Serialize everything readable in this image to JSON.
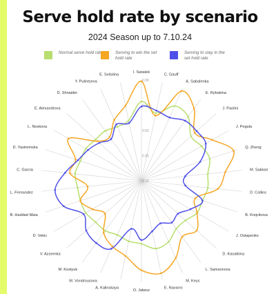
{
  "page": {
    "title": "Serve hold rate by scenario",
    "subtitle": "2024 Season up to 7.10.24"
  },
  "legend": [
    {
      "label": "Normal serve hold rate",
      "color": "#b8de6f"
    },
    {
      "label": "Serving to win the set hold rate",
      "color": "#f5a623"
    },
    {
      "label": "Serving to stay in the set hold rate",
      "color": "#4e4fe8"
    }
  ],
  "chart_data": {
    "type": "radar",
    "title": "Serve hold rate by scenario",
    "subtitle": "2024 Season up to 7.10.24",
    "rlim": [
      0.15,
      0.95
    ],
    "rticks": [
      0.15,
      0.35,
      0.55,
      0.75,
      0.95
    ],
    "categories": [
      "I. Swiatek",
      "C. Gauff",
      "A. Sabalenka",
      "E. Rybakina",
      "J. Paolini",
      "J. Pegula",
      "Q. Zheng",
      "M. Sakkari",
      "D. Collins",
      "B. Krejcikova",
      "J. Ostapenko",
      "D. Kasatkina",
      "L. Samsonova",
      "M. Keys",
      "E. Navarro",
      "O. Jabeur",
      "A. Kalinskaya",
      "M. Vondrousova",
      "M. Kostyuk",
      "V. Azarenka",
      "D. Vekic",
      "B. Haddad Maia",
      "L. Fernandez",
      "C. Garcia",
      "D. Yastremska",
      "L. Noskova",
      "E. Alexandrova",
      "D. Shnaider",
      "Y. Putintseva",
      "E. Svitolina"
    ],
    "series": [
      {
        "name": "Normal serve hold rate",
        "color": "#b8de6f",
        "values": [
          0.78,
          0.7,
          0.8,
          0.78,
          0.68,
          0.7,
          0.72,
          0.68,
          0.68,
          0.66,
          0.66,
          0.62,
          0.62,
          0.68,
          0.7,
          0.65,
          0.64,
          0.62,
          0.64,
          0.64,
          0.66,
          0.66,
          0.66,
          0.68,
          0.66,
          0.66,
          0.64,
          0.64,
          0.62,
          0.64
        ]
      },
      {
        "name": "Serving to win the set hold rate",
        "color": "#f5a623",
        "values": [
          0.94,
          0.68,
          0.93,
          0.86,
          0.72,
          0.8,
          0.92,
          0.82,
          0.76,
          0.6,
          0.66,
          0.74,
          0.7,
          0.82,
          0.9,
          0.86,
          0.76,
          0.72,
          0.66,
          0.54,
          0.6,
          0.66,
          0.58,
          0.72,
          0.7,
          0.82,
          0.62,
          0.58,
          0.68,
          0.76
        ]
      },
      {
        "name": "Serving to stay in the set hold rate",
        "color": "#4e4fe8",
        "values": [
          0.74,
          0.72,
          0.7,
          0.74,
          0.74,
          0.74,
          0.64,
          0.5,
          0.5,
          0.66,
          0.6,
          0.54,
          0.56,
          0.52,
          0.56,
          0.62,
          0.54,
          0.74,
          0.76,
          0.74,
          0.68,
          0.8,
          0.84,
          0.76,
          0.68,
          0.64,
          0.6,
          0.56,
          0.64,
          0.62
        ]
      }
    ]
  }
}
